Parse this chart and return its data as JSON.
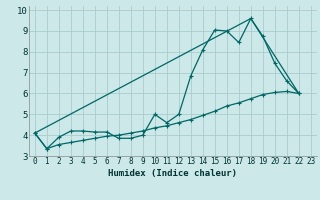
{
  "xlabel": "Humidex (Indice chaleur)",
  "bg_color": "#cce8e8",
  "grid_color": "#aacccc",
  "line_color": "#006666",
  "xlim": [
    -0.5,
    23.5
  ],
  "ylim": [
    3.0,
    10.2
  ],
  "yticks": [
    3,
    4,
    5,
    6,
    7,
    8,
    9,
    10
  ],
  "xticks": [
    0,
    1,
    2,
    3,
    4,
    5,
    6,
    7,
    8,
    9,
    10,
    11,
    12,
    13,
    14,
    15,
    16,
    17,
    18,
    19,
    20,
    21,
    22,
    23
  ],
  "line1_x": [
    0,
    1,
    2,
    3,
    4,
    5,
    6,
    7,
    8,
    9,
    10,
    11,
    12,
    13,
    14,
    15,
    16,
    17,
    18,
    19,
    20,
    21,
    22
  ],
  "line1_y": [
    4.1,
    3.35,
    3.9,
    4.2,
    4.2,
    4.15,
    4.15,
    3.85,
    3.85,
    4.0,
    5.0,
    4.6,
    5.0,
    6.85,
    8.1,
    9.05,
    9.0,
    8.45,
    9.6,
    8.75,
    7.45,
    6.6,
    6.0
  ],
  "line2_x": [
    0,
    1,
    2,
    3,
    4,
    5,
    6,
    7,
    8,
    9,
    10,
    11,
    12,
    13,
    14,
    15,
    16,
    17,
    18,
    19,
    20,
    21,
    22
  ],
  "line2_y": [
    4.1,
    3.35,
    3.55,
    3.65,
    3.75,
    3.85,
    3.95,
    4.0,
    4.1,
    4.2,
    4.35,
    4.45,
    4.6,
    4.75,
    4.95,
    5.15,
    5.4,
    5.55,
    5.75,
    5.95,
    6.05,
    6.1,
    6.0
  ],
  "line3_x": [
    0,
    18,
    22
  ],
  "line3_y": [
    4.1,
    9.6,
    6.0
  ]
}
